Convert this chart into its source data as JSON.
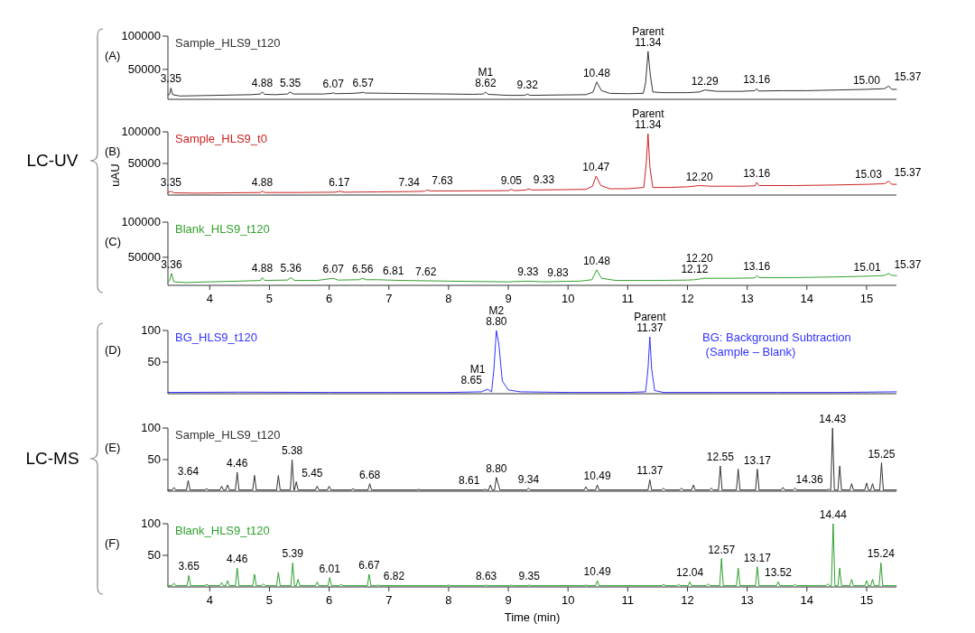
{
  "chart_data": [
    {
      "type": "line",
      "title": "(A)",
      "xlim": [
        3.3,
        15.5
      ],
      "ylim": [
        5000,
        100000
      ],
      "yticks": [
        50000,
        100000
      ],
      "tick_labels": "y",
      "series": [
        {
          "name": "Sample_HLS9_t120",
          "color": "#333333",
          "x": [
            3.3,
            3.33,
            3.35,
            3.38,
            3.5,
            3.8,
            4.1,
            4.4,
            4.7,
            4.85,
            4.88,
            4.92,
            5.1,
            5.3,
            5.35,
            5.4,
            5.6,
            5.9,
            6.05,
            6.07,
            6.1,
            6.4,
            6.55,
            6.57,
            6.6,
            7.0,
            7.5,
            8.0,
            8.4,
            8.58,
            8.62,
            8.66,
            9.0,
            9.28,
            9.32,
            9.36,
            9.8,
            10.3,
            10.42,
            10.48,
            10.56,
            10.7,
            11.0,
            11.26,
            11.3,
            11.34,
            11.38,
            11.42,
            11.6,
            12.0,
            12.2,
            12.29,
            12.5,
            12.9,
            13.13,
            13.16,
            13.19,
            13.6,
            14.0,
            14.5,
            15.0,
            15.3,
            15.37,
            15.42,
            15.5
          ],
          "values": [
            11000,
            13000,
            22000,
            12000,
            10000,
            10500,
            11000,
            11500,
            12000,
            13000,
            16000,
            12500,
            12000,
            13000,
            16000,
            13000,
            13000,
            13000,
            14000,
            15000,
            13500,
            14000,
            15000,
            16000,
            14500,
            14000,
            13500,
            13000,
            12500,
            13000,
            16000,
            12500,
            11000,
            11000,
            13000,
            11000,
            11500,
            12000,
            16000,
            31000,
            18000,
            14000,
            13500,
            14000,
            30000,
            77000,
            40000,
            16000,
            15000,
            15000,
            16000,
            19000,
            17000,
            17000,
            18000,
            21000,
            17500,
            18000,
            18000,
            19000,
            20000,
            21000,
            25000,
            20000,
            20000
          ]
        }
      ],
      "annotations": [
        {
          "text": "3.35",
          "x": 3.35,
          "y": 22000
        },
        {
          "text": "4.88",
          "x": 4.88,
          "y": 16000
        },
        {
          "text": "5.35",
          "x": 5.35,
          "y": 16000
        },
        {
          "text": "6.07",
          "x": 6.07,
          "y": 15000
        },
        {
          "text": "6.57",
          "x": 6.57,
          "y": 16000
        },
        {
          "text": "8.62",
          "x": 8.62,
          "y": 16000
        },
        {
          "text": "M1",
          "x": 8.62,
          "y": 16000
        },
        {
          "text": "9.32",
          "x": 9.32,
          "y": 13000
        },
        {
          "text": "10.48",
          "x": 10.48,
          "y": 31000
        },
        {
          "text": "11.34",
          "x": 11.34,
          "y": 77000
        },
        {
          "text": "Parent",
          "x": 11.34,
          "y": 77000
        },
        {
          "text": "12.29",
          "x": 12.29,
          "y": 19000
        },
        {
          "text": "13.16",
          "x": 13.16,
          "y": 21000
        },
        {
          "text": "15.00",
          "x": 15.0,
          "y": 20000
        },
        {
          "text": "15.37",
          "x": 15.37,
          "y": 25000
        }
      ]
    },
    {
      "type": "line",
      "title": "(B)",
      "ylabel": "uAU",
      "xlim": [
        3.3,
        15.5
      ],
      "ylim": [
        0,
        100000
      ],
      "yticks": [
        50000,
        100000
      ],
      "tick_labels": "y",
      "series": [
        {
          "name": "Sample_HLS9_t0",
          "color": "#cc2222",
          "x": [
            3.3,
            3.35,
            3.4,
            3.8,
            4.3,
            4.85,
            4.88,
            4.92,
            5.5,
            6.1,
            6.17,
            6.25,
            6.8,
            7.34,
            7.6,
            7.63,
            7.7,
            8.2,
            9.0,
            9.05,
            9.1,
            9.3,
            9.33,
            9.4,
            9.9,
            10.3,
            10.41,
            10.47,
            10.55,
            10.7,
            11.0,
            11.27,
            11.31,
            11.34,
            11.37,
            11.42,
            11.7,
            12.0,
            12.2,
            12.4,
            12.9,
            13.13,
            13.16,
            13.2,
            13.8,
            14.5,
            15.03,
            15.3,
            15.37,
            15.42,
            15.5
          ],
          "values": [
            4000,
            6000,
            3500,
            3000,
            3500,
            4000,
            6000,
            4000,
            4000,
            4500,
            6000,
            4500,
            5000,
            5500,
            6000,
            8000,
            6500,
            6500,
            7000,
            9000,
            7000,
            8000,
            10000,
            8000,
            8500,
            9000,
            14000,
            30000,
            15000,
            10000,
            10000,
            12000,
            50000,
            97000,
            45000,
            12000,
            12000,
            13000,
            15000,
            14000,
            14000,
            14500,
            20000,
            15000,
            15000,
            16000,
            17000,
            18000,
            22000,
            17000,
            17000
          ]
        }
      ],
      "annotations": [
        "LC-UV",
        {
          "text": "3.35",
          "x": 3.35,
          "y": 6000
        },
        {
          "text": "4.88",
          "x": 4.88,
          "y": 6000
        },
        {
          "text": "6.17",
          "x": 6.17,
          "y": 6000
        },
        {
          "text": "7.34",
          "x": 7.34,
          "y": 5500
        },
        {
          "text": "7.63",
          "x": 7.63,
          "y": 8000
        },
        {
          "text": "9.05",
          "x": 9.05,
          "y": 9000
        },
        {
          "text": "9.33",
          "x": 9.33,
          "y": 10000
        },
        {
          "text": "10.47",
          "x": 10.47,
          "y": 30000
        },
        {
          "text": "11.34",
          "x": 11.34,
          "y": 97000
        },
        {
          "text": "Parent",
          "x": 11.34,
          "y": 97000
        },
        {
          "text": "12.20",
          "x": 12.2,
          "y": 15000
        },
        {
          "text": "13.16",
          "x": 13.16,
          "y": 20000
        },
        {
          "text": "15.03",
          "x": 15.03,
          "y": 17000
        },
        {
          "text": "15.37",
          "x": 15.37,
          "y": 22000
        }
      ]
    },
    {
      "type": "line",
      "title": "(C)",
      "xlim": [
        3.3,
        15.5
      ],
      "xticks": [
        4,
        5,
        6,
        7,
        8,
        9,
        10,
        11,
        12,
        13,
        14,
        15
      ],
      "ylim": [
        10000,
        100000
      ],
      "yticks": [
        50000,
        100000
      ],
      "series": [
        {
          "name": "Blank_HLS9_t120",
          "color": "#33a02c",
          "x": [
            3.3,
            3.33,
            3.36,
            3.4,
            3.6,
            4.0,
            4.5,
            4.85,
            4.88,
            4.92,
            5.3,
            5.36,
            5.42,
            5.8,
            6.07,
            6.15,
            6.5,
            6.56,
            6.62,
            6.81,
            7.2,
            7.62,
            8.0,
            8.5,
            9.0,
            9.33,
            9.6,
            9.83,
            10.2,
            10.4,
            10.48,
            10.56,
            10.8,
            11.5,
            12.0,
            12.12,
            12.2,
            12.25,
            12.7,
            13.13,
            13.16,
            13.2,
            13.8,
            14.5,
            15.01,
            15.3,
            15.37,
            15.42,
            15.5
          ],
          "values": [
            15000,
            17000,
            27000,
            15000,
            14000,
            15000,
            16000,
            17000,
            21000,
            17000,
            17500,
            21000,
            17000,
            17000,
            20000,
            17500,
            18000,
            20000,
            18000,
            18000,
            17000,
            16500,
            16000,
            15500,
            15000,
            16000,
            15000,
            15500,
            16000,
            18000,
            32000,
            20000,
            17000,
            17000,
            17500,
            18000,
            19000,
            20000,
            20000,
            20500,
            24000,
            21000,
            21000,
            22000,
            23000,
            24000,
            27000,
            24000,
            24000
          ]
        }
      ],
      "annotations": [
        {
          "text": "3.36",
          "x": 3.36,
          "y": 27000
        },
        {
          "text": "4.88",
          "x": 4.88,
          "y": 21000
        },
        {
          "text": "5.36",
          "x": 5.36,
          "y": 21000
        },
        {
          "text": "6.07",
          "x": 6.07,
          "y": 20000
        },
        {
          "text": "6.56",
          "x": 6.56,
          "y": 20000
        },
        {
          "text": "6.81",
          "x": 6.81,
          "y": 18000
        },
        {
          "text": "7.62",
          "x": 7.62,
          "y": 16500
        },
        {
          "text": "9.33",
          "x": 9.33,
          "y": 16000
        },
        {
          "text": "9.83",
          "x": 9.83,
          "y": 15500
        },
        {
          "text": "10.48",
          "x": 10.48,
          "y": 32000
        },
        {
          "text": "12.12",
          "x": 12.12,
          "y": 18000
        },
        {
          "text": "12.20",
          "x": 12.2,
          "y": 19000
        },
        {
          "text": "13.16",
          "x": 13.16,
          "y": 24000
        },
        {
          "text": "15.01",
          "x": 15.01,
          "y": 23000
        },
        {
          "text": "15.37",
          "x": 15.37,
          "y": 27000
        }
      ]
    },
    {
      "type": "line",
      "title": "(D)",
      "subtitle": "BG: Background Subtraction\n (Sample – Blank)",
      "xlim": [
        3.3,
        15.5
      ],
      "ylim": [
        0,
        100
      ],
      "yticks": [
        50,
        100
      ],
      "tick_labels": "y",
      "series": [
        {
          "name": "BG_HLS9_t120",
          "color": "#3333ff",
          "x": [
            3.3,
            4.5,
            6.0,
            7.0,
            8.0,
            8.55,
            8.65,
            8.72,
            8.76,
            8.8,
            8.84,
            8.9,
            9.0,
            9.2,
            10.0,
            11.0,
            11.3,
            11.34,
            11.37,
            11.4,
            11.45,
            11.6,
            12.5,
            13.5,
            14.5,
            15.5
          ],
          "values": [
            2,
            2.5,
            2,
            2,
            2,
            3,
            7,
            3,
            40,
            100,
            80,
            20,
            6,
            3,
            2,
            2,
            3,
            40,
            90,
            40,
            5,
            2,
            2,
            2,
            2,
            3
          ]
        }
      ],
      "annotations": [
        {
          "text": "8.65",
          "x": 8.65,
          "y": 7
        },
        {
          "text": "M1",
          "x": 8.65,
          "y": 7
        },
        {
          "text": "8.80",
          "x": 8.8,
          "y": 100
        },
        {
          "text": "M2",
          "x": 8.8,
          "y": 100
        },
        {
          "text": "11.37",
          "x": 11.37,
          "y": 90
        },
        {
          "text": "Parent",
          "x": 11.37,
          "y": 90
        }
      ]
    },
    {
      "type": "line",
      "title": "(E)",
      "xlim": [
        3.3,
        15.5
      ],
      "ylim": [
        0,
        100
      ],
      "yticks": [
        50,
        100
      ],
      "tick_labels": "y",
      "series": [
        {
          "name": "Sample_HLS9_t120",
          "color": "#333333",
          "x": [
            3.3,
            3.37,
            3.4,
            3.43,
            3.61,
            3.64,
            3.67,
            3.92,
            3.95,
            3.98,
            4.17,
            4.2,
            4.23,
            4.27,
            4.3,
            4.33,
            4.43,
            4.46,
            4.49,
            4.72,
            4.75,
            4.78,
            5.12,
            5.15,
            5.18,
            5.35,
            5.38,
            5.41,
            5.42,
            5.45,
            5.48,
            5.77,
            5.8,
            5.83,
            5.97,
            6.0,
            6.03,
            6.37,
            6.4,
            6.43,
            6.65,
            6.68,
            6.71,
            7.47,
            7.5,
            7.53,
            8.58,
            8.61,
            8.64,
            8.67,
            8.7,
            8.73,
            8.77,
            8.8,
            8.86,
            9.31,
            9.34,
            9.37,
            10.27,
            10.3,
            10.33,
            10.46,
            10.49,
            10.52,
            11.34,
            11.37,
            11.4,
            11.57,
            11.6,
            11.63,
            11.87,
            11.9,
            11.93,
            12.07,
            12.1,
            12.13,
            12.37,
            12.4,
            12.43,
            12.52,
            12.55,
            12.58,
            12.82,
            12.85,
            12.88,
            13.14,
            13.17,
            13.2,
            13.57,
            13.6,
            13.63,
            13.77,
            13.8,
            13.83,
            14.33,
            14.36,
            14.39,
            14.4,
            14.43,
            14.46,
            14.52,
            14.55,
            14.58,
            14.72,
            14.75,
            14.78,
            14.97,
            15.0,
            15.03,
            15.07,
            15.1,
            15.13,
            15.22,
            15.25,
            15.28,
            15.5
          ],
          "values": [
            2,
            2,
            6,
            2,
            2,
            17,
            2,
            2,
            4,
            2,
            2,
            8,
            2,
            2,
            10,
            2,
            2,
            30,
            2,
            2,
            25,
            2,
            2,
            25,
            2,
            2,
            50,
            2,
            2,
            15,
            2,
            2,
            8,
            2,
            2,
            8,
            2,
            2,
            4,
            2,
            2,
            12,
            2,
            2,
            3,
            2,
            2,
            3,
            2,
            2,
            10,
            2,
            2,
            22,
            2,
            2,
            5,
            2,
            2,
            7,
            2,
            2,
            10,
            2,
            2,
            18,
            2,
            2,
            5,
            2,
            2,
            5,
            2,
            2,
            10,
            2,
            2,
            5,
            2,
            2,
            40,
            2,
            2,
            35,
            2,
            2,
            35,
            2,
            2,
            6,
            2,
            2,
            5,
            2,
            2,
            3,
            2,
            2,
            100,
            2,
            2,
            40,
            2,
            2,
            12,
            2,
            2,
            13,
            2,
            2,
            12,
            2,
            2,
            45,
            2,
            2
          ]
        }
      ],
      "annotations": [
        "LC-MS",
        {
          "text": "3.64",
          "x": 3.64,
          "y": 17
        },
        {
          "text": "4.46",
          "x": 4.46,
          "y": 30
        },
        {
          "text": "5.38",
          "x": 5.38,
          "y": 50
        },
        {
          "text": "5.45",
          "x": 5.45,
          "y": 15
        },
        {
          "text": "6.68",
          "x": 6.68,
          "y": 12
        },
        {
          "text": "8.61",
          "x": 8.61,
          "y": 3
        },
        {
          "text": "8.80",
          "x": 8.8,
          "y": 22
        },
        {
          "text": "9.34",
          "x": 9.34,
          "y": 5
        },
        {
          "text": "10.49",
          "x": 10.49,
          "y": 10
        },
        {
          "text": "11.37",
          "x": 11.37,
          "y": 18
        },
        {
          "text": "12.55",
          "x": 12.55,
          "y": 40
        },
        {
          "text": "13.17",
          "x": 13.17,
          "y": 35
        },
        {
          "text": "14.36",
          "x": 14.36,
          "y": 3
        },
        {
          "text": "14.43",
          "x": 14.43,
          "y": 100
        },
        {
          "text": "15.25",
          "x": 15.25,
          "y": 45
        }
      ]
    },
    {
      "type": "line",
      "title": "(F)",
      "xlabel": "Time (min)",
      "xlim": [
        3.3,
        15.5
      ],
      "xticks": [
        4,
        5,
        6,
        7,
        8,
        9,
        10,
        11,
        12,
        13,
        14,
        15
      ],
      "ylim": [
        0,
        100
      ],
      "yticks": [
        50,
        100
      ],
      "series": [
        {
          "name": "Blank_HLS9_t120",
          "color": "#2ca02c",
          "x": [
            3.3,
            3.37,
            3.4,
            3.43,
            3.62,
            3.65,
            3.68,
            3.92,
            3.95,
            3.98,
            4.17,
            4.2,
            4.23,
            4.27,
            4.3,
            4.33,
            4.43,
            4.46,
            4.49,
            4.72,
            4.75,
            4.78,
            4.87,
            4.9,
            4.93,
            5.12,
            5.15,
            5.18,
            5.36,
            5.39,
            5.42,
            5.45,
            5.48,
            5.51,
            5.77,
            5.8,
            5.83,
            5.98,
            6.01,
            6.04,
            6.17,
            6.2,
            6.23,
            6.64,
            6.67,
            6.7,
            6.79,
            6.82,
            6.85,
            7.97,
            8.0,
            8.03,
            8.6,
            8.63,
            8.66,
            9.02,
            9.05,
            9.08,
            9.32,
            9.35,
            9.38,
            10.27,
            10.3,
            10.33,
            10.46,
            10.49,
            10.52,
            11.57,
            11.6,
            11.63,
            11.82,
            11.85,
            11.88,
            12.01,
            12.04,
            12.07,
            12.32,
            12.35,
            12.38,
            12.54,
            12.57,
            12.6,
            12.82,
            12.85,
            12.88,
            13.14,
            13.17,
            13.2,
            13.49,
            13.52,
            13.55,
            13.77,
            13.8,
            13.83,
            14.32,
            14.35,
            14.38,
            14.41,
            14.44,
            14.47,
            14.52,
            14.55,
            14.58,
            14.72,
            14.75,
            14.78,
            14.97,
            15.0,
            15.03,
            15.07,
            15.1,
            15.13,
            15.21,
            15.24,
            15.27,
            15.5
          ],
          "values": [
            2,
            2,
            6,
            2,
            2,
            18,
            2,
            2,
            4,
            2,
            2,
            7,
            2,
            2,
            10,
            2,
            2,
            30,
            2,
            2,
            20,
            2,
            2,
            5,
            2,
            2,
            23,
            2,
            2,
            38,
            2,
            2,
            12,
            2,
            2,
            8,
            2,
            2,
            15,
            2,
            2,
            4,
            2,
            2,
            20,
            2,
            2,
            3,
            2,
            2,
            3,
            2,
            2,
            3,
            2,
            2,
            3,
            2,
            2,
            3,
            2,
            2,
            3,
            2,
            2,
            10,
            2,
            2,
            4,
            2,
            2,
            4,
            2,
            2,
            8,
            2,
            2,
            5,
            2,
            2,
            45,
            2,
            2,
            30,
            2,
            2,
            32,
            2,
            2,
            8,
            2,
            2,
            4,
            2,
            2,
            5,
            2,
            2,
            100,
            2,
            2,
            30,
            2,
            2,
            12,
            2,
            2,
            10,
            2,
            2,
            12,
            2,
            2,
            38,
            2,
            2
          ]
        }
      ],
      "annotations": [
        {
          "text": "3.65",
          "x": 3.65,
          "y": 18
        },
        {
          "text": "4.46",
          "x": 4.46,
          "y": 30
        },
        {
          "text": "5.39",
          "x": 5.39,
          "y": 38
        },
        {
          "text": "6.01",
          "x": 6.01,
          "y": 15
        },
        {
          "text": "6.67",
          "x": 6.67,
          "y": 20
        },
        {
          "text": "6.82",
          "x": 6.82,
          "y": 3
        },
        {
          "text": "8.63",
          "x": 8.63,
          "y": 3
        },
        {
          "text": "9.35",
          "x": 9.35,
          "y": 3
        },
        {
          "text": "10.49",
          "x": 10.49,
          "y": 10
        },
        {
          "text": "12.04",
          "x": 12.04,
          "y": 8
        },
        {
          "text": "12.57",
          "x": 12.57,
          "y": 45
        },
        {
          "text": "13.17",
          "x": 13.17,
          "y": 32
        },
        {
          "text": "13.52",
          "x": 13.52,
          "y": 8
        },
        {
          "text": "14.44",
          "x": 14.44,
          "y": 100
        },
        {
          "text": "15.24",
          "x": 15.24,
          "y": 38
        }
      ]
    }
  ]
}
